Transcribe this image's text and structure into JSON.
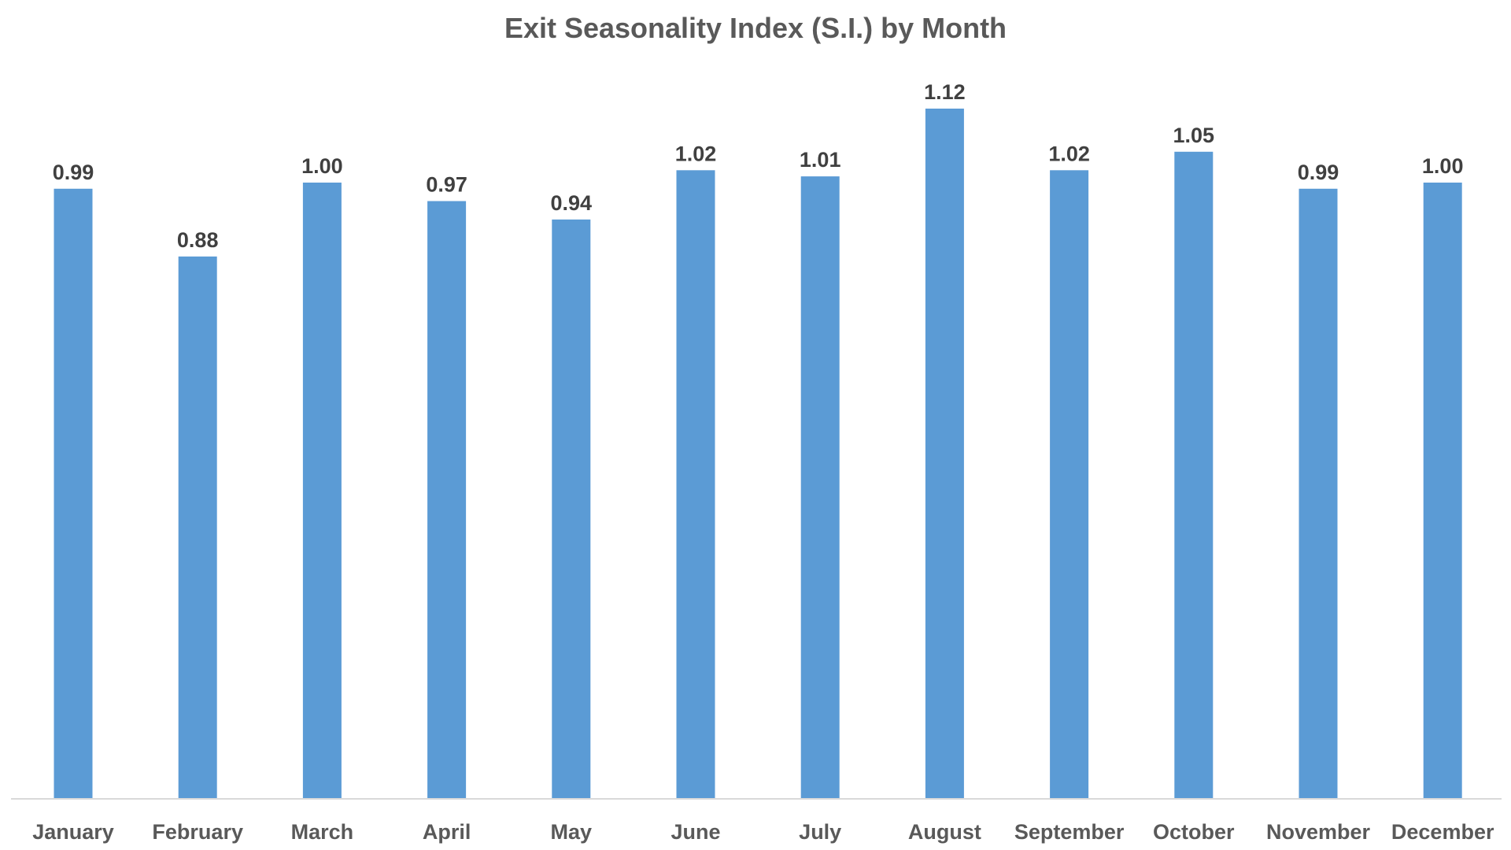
{
  "chart_data": {
    "type": "bar",
    "title": "Exit Seasonality Index (S.I.) by Month",
    "xlabel": "",
    "ylabel": "",
    "categories": [
      "January",
      "February",
      "March",
      "April",
      "May",
      "June",
      "July",
      "August",
      "September",
      "October",
      "November",
      "December"
    ],
    "values": [
      0.99,
      0.88,
      1.0,
      0.97,
      0.94,
      1.02,
      1.01,
      1.12,
      1.02,
      1.05,
      0.99,
      1.0
    ],
    "value_labels": [
      "0.99",
      "0.88",
      "1.00",
      "0.97",
      "0.94",
      "1.02",
      "1.01",
      "1.12",
      "1.02",
      "1.05",
      "0.99",
      "1.00"
    ],
    "ylim": [
      0,
      1.12
    ],
    "grid": false,
    "legend": "none",
    "bar_color": "#5B9BD5",
    "axis_color": "#D9D9D9"
  }
}
